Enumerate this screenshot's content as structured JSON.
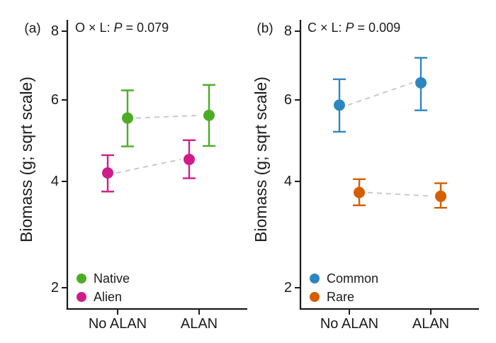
{
  "figure": {
    "background": "#ffffff",
    "text_color": "#1b1b1b",
    "axis_color": "#1b1b1b",
    "connector_color": "#c4c4c4"
  },
  "chart_data": [
    {
      "type": "scatter",
      "panel_label": "(a)",
      "annotation": "O × L: P = 0.079",
      "annotation_parts": {
        "before": "O × L: ",
        "italic": "P",
        "after": " = 0.079"
      },
      "ylabel": "Biomass (g; sqrt scale)",
      "yscale": "sqrt",
      "ylim": [
        1.7,
        8.5
      ],
      "yticks": [
        2,
        4,
        6,
        8
      ],
      "categories": [
        "No ALAN",
        "ALAN"
      ],
      "grid": false,
      "legend_position": "bottom-left",
      "series": [
        {
          "name": "Native",
          "color": "#4DAC26",
          "dodge": 1,
          "means": [
            5.52,
            5.59
          ],
          "ci_low": [
            4.81,
            4.82
          ],
          "ci_high": [
            6.26,
            6.41
          ]
        },
        {
          "name": "Alien",
          "color": "#D01C8B",
          "dodge": -1,
          "means": [
            4.19,
            4.5
          ],
          "ci_low": [
            3.78,
            4.07
          ],
          "ci_high": [
            4.6,
            4.96
          ]
        }
      ]
    },
    {
      "type": "scatter",
      "panel_label": "(b)",
      "annotation": "C × L: P = 0.009",
      "annotation_parts": {
        "before": "C × L: ",
        "italic": "P",
        "after": " = 0.009"
      },
      "ylabel": "Biomass (g; sqrt scale)",
      "yscale": "sqrt",
      "ylim": [
        1.7,
        8.5
      ],
      "yticks": [
        2,
        4,
        6,
        8
      ],
      "categories": [
        "No ALAN",
        "ALAN"
      ],
      "grid": false,
      "legend_position": "bottom-left",
      "series": [
        {
          "name": "Common",
          "color": "#2E86C1",
          "dodge": -1,
          "means": [
            5.86,
            6.47
          ],
          "ci_low": [
            5.17,
            5.72
          ],
          "ci_high": [
            6.57,
            7.19
          ]
        },
        {
          "name": "Rare",
          "color": "#D55E00",
          "dodge": 1,
          "means": [
            3.76,
            3.68
          ],
          "ci_low": [
            3.49,
            3.44
          ],
          "ci_high": [
            4.05,
            3.96
          ]
        }
      ]
    }
  ]
}
